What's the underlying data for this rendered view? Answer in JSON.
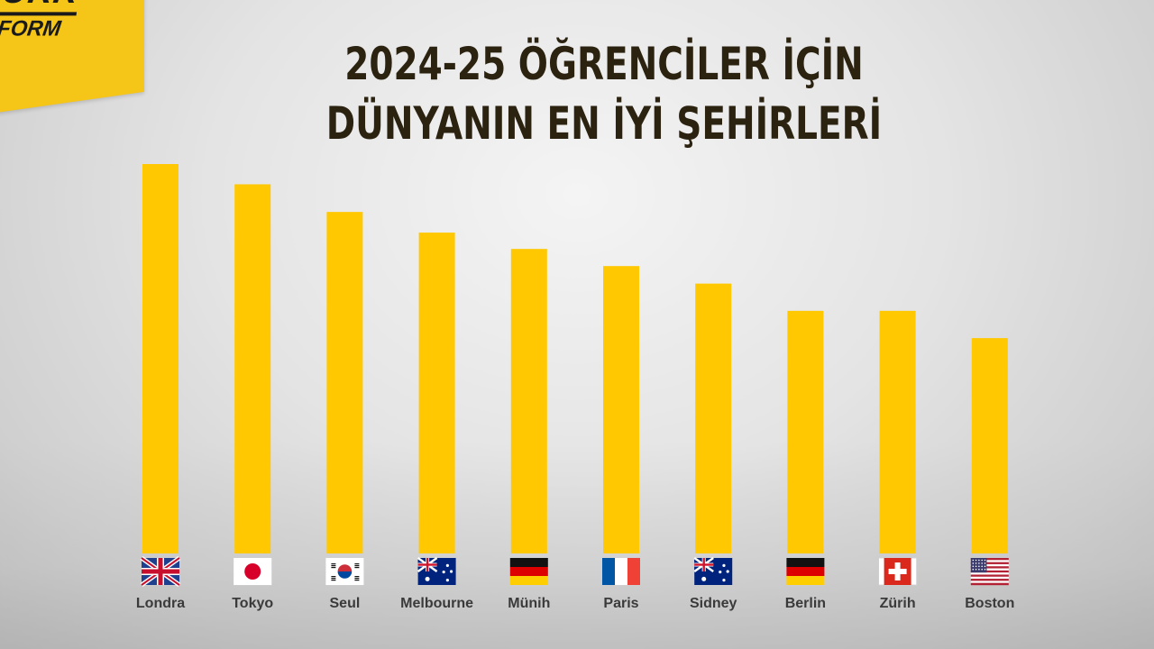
{
  "logo": {
    "line1": "TÜRK",
    "line2": "INFORM"
  },
  "title": {
    "line1": "2024-25 ÖĞRENCİLER İÇİN",
    "line2": "DÜNYANIN EN İYİ ŞEHİRLERİ"
  },
  "colors": {
    "bar": "#ffc800",
    "logo": "#f5c518",
    "title": "#2b2210",
    "label": "#3a3a3a"
  },
  "chart_data": {
    "type": "bar",
    "categories": [
      "Londra",
      "Tokyo",
      "Seul",
      "Melbourne",
      "Münih",
      "Paris",
      "Sidney",
      "Berlin",
      "Zürih",
      "Boston"
    ],
    "flags": [
      "uk-flag-icon",
      "japan-flag-icon",
      "korea-flag-icon",
      "australia-flag-icon",
      "germany-flag-icon",
      "france-flag-icon",
      "australia-flag-icon",
      "germany-flag-icon",
      "switzerland-flag-icon",
      "usa-flag-icon"
    ],
    "values": [
      100,
      94.8,
      87.7,
      82.4,
      78.2,
      73.8,
      69.3,
      62.3,
      62.3,
      55.3
    ],
    "ylim": [
      0,
      100
    ],
    "grid": false,
    "legend": "none"
  }
}
